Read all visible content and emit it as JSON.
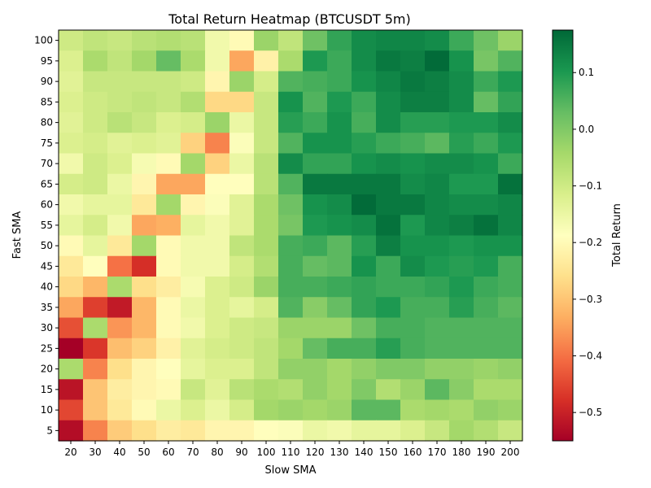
{
  "chart_data": {
    "type": "heatmap",
    "title": "Total Return Heatmap (BTCUSDT 5m)",
    "xlabel": "Slow SMA",
    "ylabel": "Fast SMA",
    "colorbar_label": "Total Return",
    "colormap": "RdYlGn",
    "vmin": -0.55,
    "vmax": 0.175,
    "colorbar_ticks": [
      "0.1",
      "0.0",
      "−0.1",
      "−0.2",
      "−0.3",
      "−0.4",
      "−0.5"
    ],
    "colorbar_tick_values": [
      0.1,
      0.0,
      -0.1,
      -0.2,
      -0.3,
      -0.4,
      -0.5
    ],
    "x_categories": [
      "20",
      "30",
      "40",
      "50",
      "60",
      "70",
      "80",
      "90",
      "100",
      "110",
      "120",
      "130",
      "140",
      "150",
      "160",
      "170",
      "180",
      "190",
      "200"
    ],
    "y_categories": [
      "100",
      "95",
      "90",
      "85",
      "80",
      "75",
      "70",
      "65",
      "60",
      "55",
      "50",
      "45",
      "40",
      "35",
      "30",
      "25",
      "20",
      "15",
      "10",
      "5"
    ],
    "values": [
      [
        -0.1,
        -0.08,
        -0.09,
        -0.07,
        -0.06,
        -0.07,
        -0.16,
        -0.2,
        -0.03,
        -0.08,
        0.02,
        0.08,
        0.12,
        0.13,
        0.13,
        0.12,
        0.07,
        0.02,
        -0.03
      ],
      [
        -0.12,
        -0.05,
        -0.08,
        -0.04,
        0.03,
        -0.05,
        -0.16,
        -0.34,
        -0.22,
        -0.05,
        0.1,
        0.07,
        0.12,
        0.15,
        0.14,
        0.17,
        0.11,
        0.01,
        0.05
      ],
      [
        -0.13,
        -0.09,
        -0.09,
        -0.09,
        -0.09,
        -0.1,
        -0.21,
        -0.03,
        -0.11,
        0.05,
        0.06,
        0.07,
        0.11,
        0.13,
        0.15,
        0.14,
        0.12,
        0.07,
        0.1
      ],
      [
        -0.12,
        -0.1,
        -0.09,
        -0.08,
        -0.09,
        -0.06,
        -0.27,
        -0.27,
        -0.09,
        0.11,
        0.05,
        0.1,
        0.07,
        0.12,
        0.14,
        0.14,
        0.12,
        0.03,
        0.08
      ],
      [
        -0.13,
        -0.1,
        -0.07,
        -0.09,
        -0.12,
        -0.11,
        -0.03,
        -0.15,
        -0.09,
        0.09,
        0.07,
        0.11,
        0.06,
        0.12,
        0.09,
        0.09,
        0.1,
        0.1,
        0.12
      ],
      [
        -0.12,
        -0.11,
        -0.13,
        -0.12,
        -0.13,
        -0.28,
        -0.38,
        -0.18,
        -0.09,
        0.05,
        0.11,
        0.11,
        0.09,
        0.07,
        0.06,
        0.04,
        0.09,
        0.07,
        0.1
      ],
      [
        -0.16,
        -0.1,
        -0.12,
        -0.17,
        -0.2,
        -0.04,
        -0.28,
        -0.15,
        -0.07,
        0.12,
        0.08,
        0.08,
        0.11,
        0.12,
        0.11,
        0.12,
        0.12,
        0.11,
        0.07
      ],
      [
        -0.11,
        -0.1,
        -0.15,
        -0.21,
        -0.34,
        -0.34,
        -0.19,
        -0.19,
        -0.07,
        0.05,
        0.15,
        0.15,
        0.15,
        0.15,
        0.12,
        0.13,
        0.1,
        0.1,
        0.16
      ],
      [
        -0.16,
        -0.14,
        -0.14,
        -0.24,
        -0.04,
        -0.21,
        -0.18,
        -0.13,
        -0.05,
        0.02,
        0.11,
        0.12,
        0.17,
        0.15,
        0.15,
        0.13,
        0.12,
        0.12,
        0.13
      ],
      [
        -0.14,
        -0.11,
        -0.16,
        -0.34,
        -0.33,
        -0.14,
        -0.16,
        -0.13,
        -0.05,
        0.01,
        0.1,
        0.11,
        0.12,
        0.16,
        0.1,
        0.13,
        0.14,
        0.16,
        0.13
      ],
      [
        -0.2,
        -0.14,
        -0.24,
        -0.04,
        -0.2,
        -0.16,
        -0.16,
        -0.08,
        -0.05,
        0.06,
        0.07,
        0.04,
        0.09,
        0.14,
        0.11,
        0.11,
        0.1,
        0.11,
        0.11
      ],
      [
        -0.24,
        -0.19,
        -0.4,
        -0.48,
        -0.2,
        -0.16,
        -0.16,
        -0.11,
        -0.06,
        0.06,
        0.03,
        0.04,
        0.11,
        0.07,
        0.12,
        0.1,
        0.09,
        0.1,
        0.06
      ],
      [
        -0.27,
        -0.32,
        -0.05,
        -0.26,
        -0.23,
        -0.17,
        -0.12,
        -0.1,
        -0.03,
        0.06,
        0.06,
        0.07,
        0.08,
        0.07,
        0.07,
        0.08,
        0.1,
        0.07,
        0.06
      ],
      [
        -0.34,
        -0.46,
        -0.51,
        -0.32,
        -0.2,
        -0.15,
        -0.12,
        -0.14,
        -0.11,
        0.05,
        -0.01,
        0.03,
        0.08,
        0.1,
        0.06,
        0.06,
        0.09,
        0.06,
        0.04
      ],
      [
        -0.44,
        -0.05,
        -0.36,
        -0.32,
        -0.2,
        -0.16,
        -0.12,
        -0.1,
        -0.09,
        -0.03,
        -0.03,
        -0.03,
        0.02,
        0.06,
        0.06,
        0.05,
        0.05,
        0.05,
        0.05
      ],
      [
        -0.55,
        -0.47,
        -0.31,
        -0.28,
        -0.22,
        -0.13,
        -0.11,
        -0.1,
        -0.08,
        -0.04,
        0.03,
        0.06,
        0.06,
        0.09,
        0.06,
        0.05,
        0.05,
        0.05,
        0.05
      ],
      [
        -0.05,
        -0.38,
        -0.26,
        -0.21,
        -0.19,
        -0.14,
        -0.12,
        -0.12,
        -0.08,
        -0.02,
        -0.02,
        -0.04,
        -0.02,
        0.0,
        0.0,
        -0.02,
        -0.02,
        -0.03,
        -0.02
      ],
      [
        -0.52,
        -0.3,
        -0.23,
        -0.21,
        -0.2,
        -0.09,
        -0.13,
        -0.07,
        -0.05,
        -0.06,
        -0.02,
        -0.04,
        0.0,
        -0.06,
        -0.03,
        0.04,
        -0.01,
        -0.05,
        -0.05
      ],
      [
        -0.45,
        -0.3,
        -0.24,
        -0.2,
        -0.15,
        -0.12,
        -0.15,
        -0.11,
        -0.04,
        -0.03,
        -0.04,
        -0.03,
        0.04,
        0.04,
        -0.05,
        -0.04,
        -0.05,
        -0.02,
        -0.03
      ],
      [
        -0.53,
        -0.38,
        -0.29,
        -0.26,
        -0.23,
        -0.24,
        -0.21,
        -0.21,
        -0.19,
        -0.18,
        -0.15,
        -0.16,
        -0.14,
        -0.14,
        -0.12,
        -0.09,
        -0.04,
        -0.06,
        -0.09
      ]
    ]
  }
}
